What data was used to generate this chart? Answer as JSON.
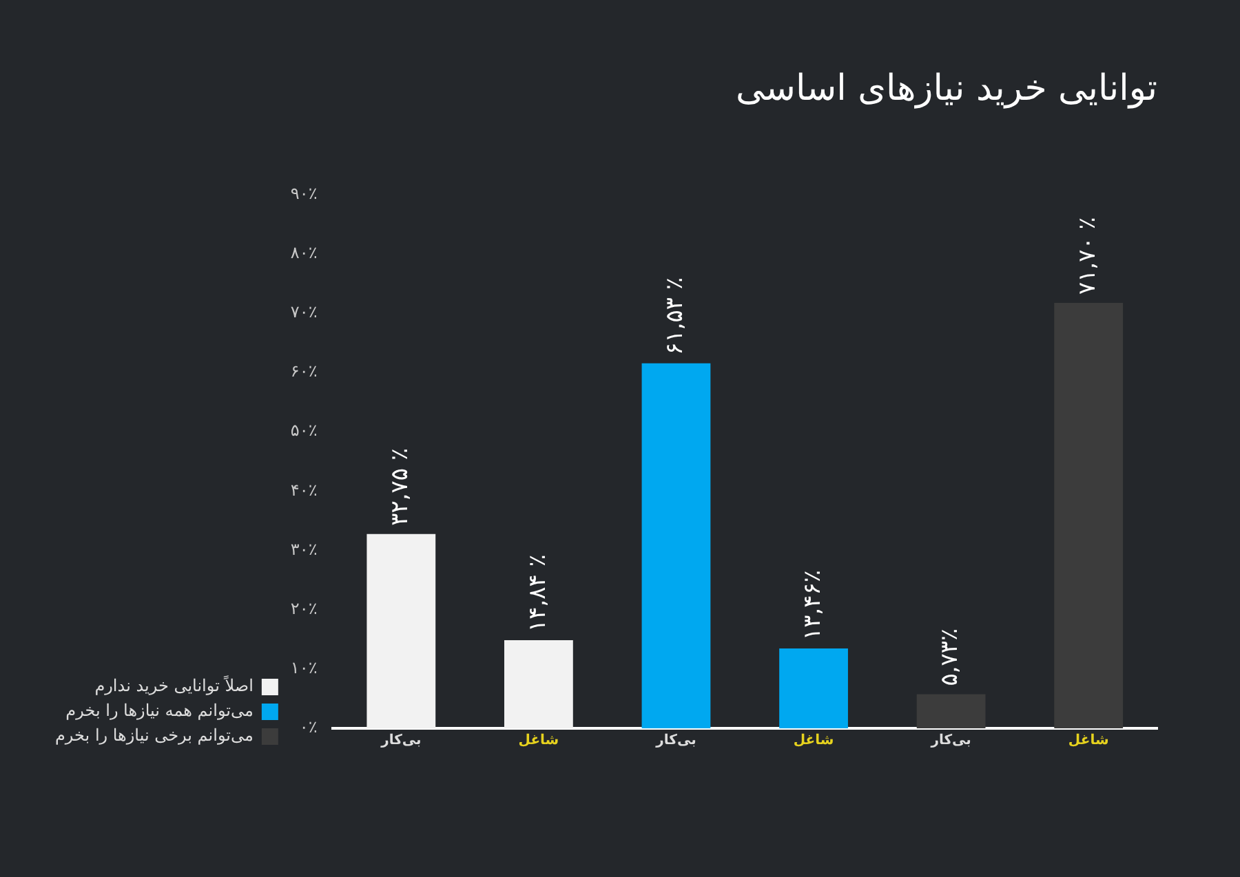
{
  "chart_data": {
    "type": "bar",
    "title": "توانایی خرید نیازهای اساسی",
    "categories": [
      "بی‌کار",
      "شاغل",
      "بی‌کار",
      "شاغل",
      "بی‌کار",
      "شاغل"
    ],
    "series": [
      {
        "name": "اصلاً توانایی خرید ندارم",
        "color": "#f2f2f2",
        "values": [
          32.75,
          14.84,
          null,
          null,
          null,
          null
        ],
        "value_labels": [
          "۳۲,۷۵ ٪",
          "۱۴,۸۴ ٪",
          null,
          null,
          null,
          null
        ]
      },
      {
        "name": "می‌توانم همه نیازها را بخرم",
        "color": "#00a8f0",
        "values": [
          null,
          null,
          61.53,
          13.46,
          null,
          null
        ],
        "value_labels": [
          null,
          null,
          "۶۱,۵۳ ٪",
          "۱۳,۴۶٪",
          null,
          null
        ]
      },
      {
        "name": "می‌توانم برخی نیازها را بخرم",
        "color": "#3c3c3c",
        "values": [
          null,
          null,
          null,
          null,
          5.73,
          71.7
        ],
        "value_labels": [
          null,
          null,
          null,
          null,
          "۵,۷۳٪",
          "۷۱,۷۰ ٪"
        ]
      }
    ],
    "ylim": [
      0,
      90
    ],
    "yticks": [
      {
        "value": 0,
        "label": "۰٪"
      },
      {
        "value": 10,
        "label": "۱۰٪"
      },
      {
        "value": 20,
        "label": "۲۰٪"
      },
      {
        "value": 30,
        "label": "۳۰٪"
      },
      {
        "value": 40,
        "label": "۴۰٪"
      },
      {
        "value": 50,
        "label": "۵۰٪"
      },
      {
        "value": 60,
        "label": "۶۰٪"
      },
      {
        "value": 70,
        "label": "۷۰٪"
      },
      {
        "value": 80,
        "label": "۸۰٪"
      },
      {
        "value": 90,
        "label": "۹۰٪"
      }
    ],
    "grid": false,
    "legend": "bottom left"
  }
}
